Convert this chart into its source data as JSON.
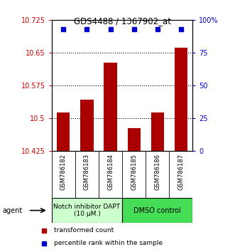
{
  "title": "GDS4488 / 1367902_at",
  "samples": [
    "GSM786182",
    "GSM786183",
    "GSM786184",
    "GSM786185",
    "GSM786186",
    "GSM786187"
  ],
  "bar_values": [
    10.513,
    10.543,
    10.628,
    10.477,
    10.513,
    10.662
  ],
  "percentile_values": [
    93,
    93,
    93,
    93,
    93,
    93
  ],
  "ylim_left": [
    10.425,
    10.725
  ],
  "ylim_right": [
    0,
    100
  ],
  "yticks_left": [
    10.425,
    10.5,
    10.575,
    10.65,
    10.725
  ],
  "yticks_right": [
    0,
    25,
    50,
    75,
    100
  ],
  "ytick_labels_left": [
    "10.425",
    "10.5",
    "10.575",
    "10.65",
    "10.725"
  ],
  "ytick_labels_right": [
    "0",
    "25",
    "50",
    "75",
    "100%"
  ],
  "bar_color": "#aa0000",
  "dot_color": "#0000cc",
  "group1_label": "Notch inhibitor DAPT\n(10 μM.)",
  "group2_label": "DMSO control",
  "group1_color": "#ccffcc",
  "group2_color": "#44dd55",
  "group_edge_color": "#000000",
  "legend_bar_label": "transformed count",
  "legend_dot_label": "percentile rank within the sample",
  "agent_label": "agent",
  "label_bg_color": "#cccccc",
  "axis_left_color": "#cc0000",
  "axis_right_color": "#0000cc"
}
